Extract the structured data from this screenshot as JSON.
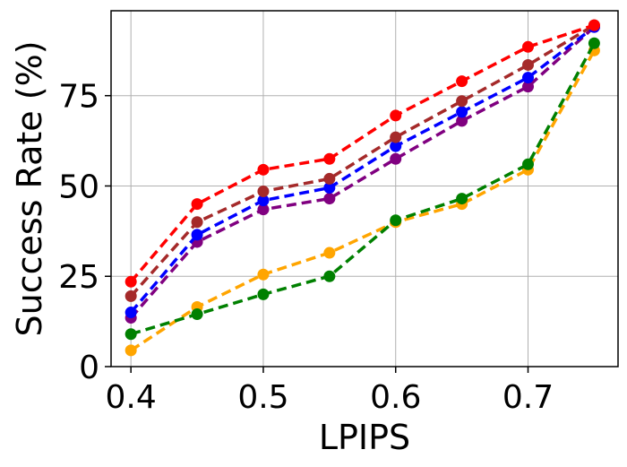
{
  "chart_data": {
    "type": "line",
    "xlabel": "LPIPS",
    "ylabel": "Success Rate (%)",
    "x": [
      0.4,
      0.45,
      0.5,
      0.55,
      0.6,
      0.65,
      0.7,
      0.75
    ],
    "xlim": [
      0.385,
      0.768
    ],
    "ylim": [
      0,
      98.5
    ],
    "xticks": [
      0.4,
      0.5,
      0.6,
      0.7
    ],
    "yticks": [
      0,
      25,
      50,
      75
    ],
    "xtick_labels": [
      "0.4",
      "0.5",
      "0.6",
      "0.7"
    ],
    "ytick_labels": [
      "0",
      "25",
      "50",
      "75"
    ],
    "grid": true,
    "line_style": "dashed",
    "marker": "circle",
    "series": [
      {
        "color": "#ffa500",
        "values": [
          4.5,
          16.5,
          25.5,
          31.5,
          40.0,
          45.0,
          54.5,
          87.5
        ]
      },
      {
        "color": "#008000",
        "values": [
          9.0,
          14.5,
          20.0,
          25.0,
          40.5,
          46.5,
          56.0,
          89.5
        ]
      },
      {
        "color": "#800080",
        "values": [
          13.5,
          34.5,
          43.5,
          46.5,
          57.5,
          68.0,
          77.5,
          94.0
        ]
      },
      {
        "color": "#0000ff",
        "values": [
          15.0,
          36.5,
          46.0,
          49.5,
          61.0,
          70.5,
          80.0,
          94.0
        ]
      },
      {
        "color": "#a52a2a",
        "values": [
          19.5,
          40.0,
          48.5,
          52.0,
          63.5,
          73.5,
          83.5,
          94.5
        ]
      },
      {
        "color": "#ff0000",
        "values": [
          23.5,
          45.0,
          54.5,
          57.5,
          69.5,
          79.0,
          88.5,
          94.5
        ]
      }
    ]
  }
}
